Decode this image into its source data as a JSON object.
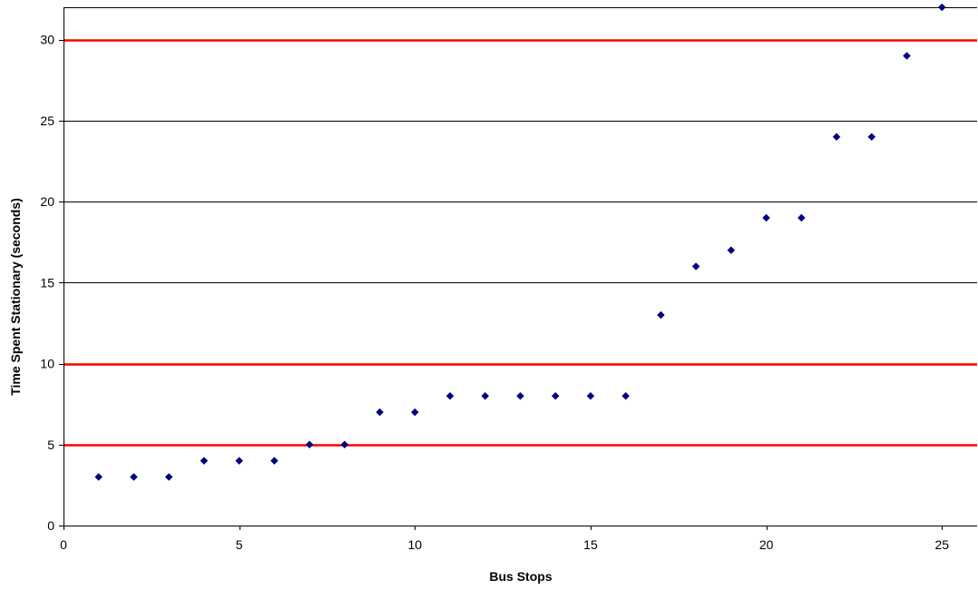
{
  "chart_data": {
    "type": "scatter",
    "title": "",
    "xlabel": "Bus Stops",
    "ylabel": "Time Spent Stationary (seconds)",
    "xlim": [
      0,
      26
    ],
    "ylim": [
      0,
      32
    ],
    "xticks": [
      0,
      5,
      10,
      15,
      20,
      25
    ],
    "yticks": [
      0,
      5,
      10,
      15,
      20,
      25,
      30
    ],
    "grid": "horizontal",
    "legend": "none",
    "marker": "diamond",
    "series": [
      {
        "x": [
          1,
          2,
          3,
          4,
          5,
          6,
          7,
          8,
          9,
          10,
          11,
          12,
          13,
          14,
          15,
          16,
          17,
          18,
          19,
          20,
          21,
          22,
          23,
          24,
          25
        ],
        "y": [
          3,
          3,
          3,
          4,
          4,
          4,
          5,
          5,
          7,
          7,
          8,
          8,
          8,
          8,
          8,
          8,
          13,
          16,
          17,
          19,
          19,
          24,
          24,
          29,
          32
        ],
        "color": "#000080"
      }
    ],
    "reference_lines": [
      {
        "y": 5,
        "color": "#ff0000"
      },
      {
        "y": 10,
        "color": "#ff0000"
      },
      {
        "y": 30,
        "color": "#ff0000"
      }
    ],
    "gridline_color": "#000000",
    "axis_color": "#000000"
  }
}
